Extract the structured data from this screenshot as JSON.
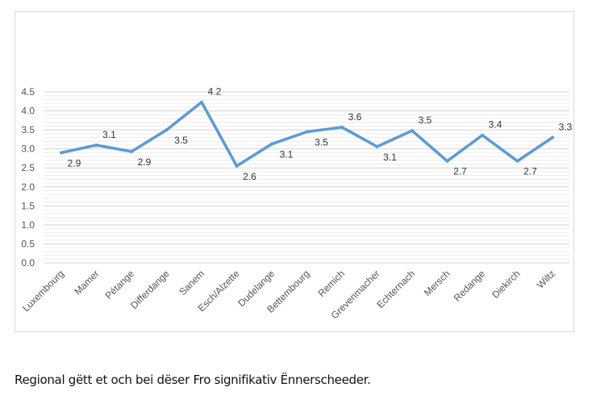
{
  "chart_data": {
    "type": "line",
    "categories": [
      "Luxembourg",
      "Mamer",
      "Pétange",
      "Differdange",
      "Sanem",
      "Esch/Alzette",
      "Dudelange",
      "Bettembourg",
      "Remich",
      "Grevenmacher",
      "Echternach",
      "Mersch",
      "Redange",
      "Diekirch",
      "Wiltz"
    ],
    "values": [
      2.9,
      3.1,
      2.9,
      3.5,
      4.2,
      2.6,
      3.1,
      3.5,
      3.6,
      3.1,
      3.5,
      2.7,
      3.4,
      2.7,
      3.3
    ],
    "plotted": [
      2.9,
      3.1,
      2.93,
      3.5,
      4.23,
      2.55,
      3.13,
      3.45,
      3.57,
      3.06,
      3.48,
      2.68,
      3.36,
      2.68,
      3.3
    ],
    "ylim": [
      0,
      4.5
    ],
    "yticks": [
      "0.0",
      "0.5",
      "1.0",
      "1.5",
      "2.0",
      "2.5",
      "3.0",
      "3.5",
      "4.0",
      "4.5"
    ],
    "grid": true,
    "line_color": "#5b9bd5",
    "title": "",
    "xlabel": "",
    "ylabel": ""
  },
  "caption": "Regional gëtt et och bei dëser Fro signifikativ Ënnerscheeder."
}
